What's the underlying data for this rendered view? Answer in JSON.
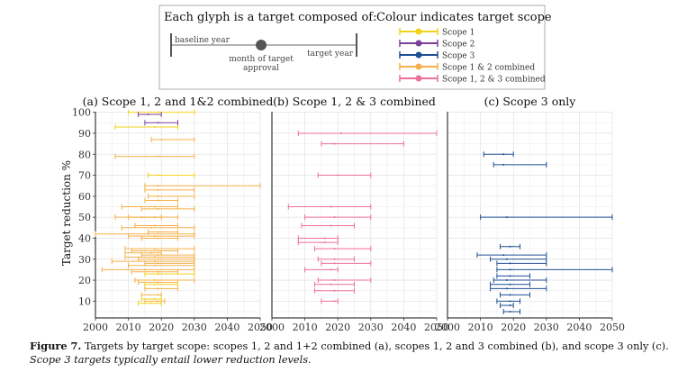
{
  "legend": {
    "glyph_heading": "Each glyph is a target composed of:",
    "glyph_baseline": "baseline year",
    "glyph_approval": "month of target approval",
    "glyph_target": "target year",
    "colour_heading": "Colour indicates target scope",
    "scopes": [
      {
        "label": "Scope 1",
        "color": "#f2d31b"
      },
      {
        "label": "Scope 2",
        "color": "#7b3f98"
      },
      {
        "label": "Scope 3",
        "color": "#1f4e94"
      },
      {
        "label": "Scope 1 & 2 combined",
        "color": "#f5b04a"
      },
      {
        "label": "Scope 1, 2 & 3 combined",
        "color": "#ec6f9d"
      }
    ],
    "glyph_color": "#b3b3b3",
    "glyph_dot_color": "#555555"
  },
  "caption": {
    "label": "Figure 7.",
    "text": " Targets by target scope: scopes 1, 2 and 1+2 combined (a), scopes 1, 2 and 3 combined (b), and scope 3 only (c).",
    "note": "Scope 3 targets typically entail lower reduction levels."
  },
  "chart_data": [
    {
      "type": "scatter",
      "title": "(a) Scope 1, 2 and 1&2 combined",
      "ylabel": "Target reduction %",
      "xlabel": "",
      "xlim": [
        2000,
        2050
      ],
      "ylim": [
        2,
        102
      ],
      "xticks": [
        2000,
        2010,
        2020,
        2030,
        2040,
        2050
      ],
      "yticks": [
        10,
        20,
        30,
        40,
        50,
        60,
        70,
        80,
        90,
        100
      ],
      "grid": true,
      "targets": [
        {
          "scope": "Scope 1",
          "baseline": 2010,
          "approval": 2019,
          "target": 2030,
          "reduction": 100
        },
        {
          "scope": "Scope 2",
          "baseline": 2013,
          "approval": 2016,
          "target": 2020,
          "reduction": 99
        },
        {
          "scope": "Scope 1",
          "baseline": 2006,
          "approval": 2018,
          "target": 2025,
          "reduction": 93
        },
        {
          "scope": "Scope 2",
          "baseline": 2015,
          "approval": 2019,
          "target": 2025,
          "reduction": 95
        },
        {
          "scope": "Scope 1 & 2 combined",
          "baseline": 2017,
          "approval": 2020,
          "target": 2030,
          "reduction": 87
        },
        {
          "scope": "Scope 1 & 2 combined",
          "baseline": 2006,
          "approval": 2019,
          "target": 2030,
          "reduction": 79
        },
        {
          "scope": "Scope 1",
          "baseline": 2016,
          "approval": 2019,
          "target": 2030,
          "reduction": 70
        },
        {
          "scope": "Scope 1 & 2 combined",
          "baseline": 2015,
          "approval": 2019,
          "target": 2050,
          "reduction": 65
        },
        {
          "scope": "Scope 1 & 2 combined",
          "baseline": 2015,
          "approval": 2019,
          "target": 2030,
          "reduction": 63
        },
        {
          "scope": "Scope 1 & 2 combined",
          "baseline": 2016,
          "approval": 2019,
          "target": 2030,
          "reduction": 60
        },
        {
          "scope": "Scope 1 & 2 combined",
          "baseline": 2015,
          "approval": 2019,
          "target": 2025,
          "reduction": 58
        },
        {
          "scope": "Scope 1 & 2 combined",
          "baseline": 2008,
          "approval": 2018,
          "target": 2025,
          "reduction": 55
        },
        {
          "scope": "Scope 1 & 2 combined",
          "baseline": 2014,
          "approval": 2019,
          "target": 2030,
          "reduction": 54
        },
        {
          "scope": "Scope 1 & 2 combined",
          "baseline": 2006,
          "approval": 2014,
          "target": 2020,
          "reduction": 50
        },
        {
          "scope": "Scope 1 & 2 combined",
          "baseline": 2010,
          "approval": 2018,
          "target": 2025,
          "reduction": 50
        },
        {
          "scope": "Scope 1 & 2 combined",
          "baseline": 2008,
          "approval": 2017,
          "target": 2030,
          "reduction": 45
        },
        {
          "scope": "Scope 1 & 2 combined",
          "baseline": 2012,
          "approval": 2018,
          "target": 2025,
          "reduction": 46
        },
        {
          "scope": "Scope 1 & 2 combined",
          "baseline": 2016,
          "approval": 2019,
          "target": 2025,
          "reduction": 43
        },
        {
          "scope": "Scope 1 & 2 combined",
          "baseline": 2010,
          "approval": 2018,
          "target": 2030,
          "reduction": 41
        },
        {
          "scope": "Scope 1 & 2 combined",
          "baseline": 2000,
          "approval": 2016,
          "target": 2030,
          "reduction": 42
        },
        {
          "scope": "Scope 1 & 2 combined",
          "baseline": 2014,
          "approval": 2019,
          "target": 2025,
          "reduction": 40
        },
        {
          "scope": "Scope 1 & 2 combined",
          "baseline": 2009,
          "approval": 2018,
          "target": 2030,
          "reduction": 35
        },
        {
          "scope": "Scope 1 & 2 combined",
          "baseline": 2011,
          "approval": 2019,
          "target": 2025,
          "reduction": 34
        },
        {
          "scope": "Scope 1 & 2 combined",
          "baseline": 2009,
          "approval": 2017,
          "target": 2020,
          "reduction": 33
        },
        {
          "scope": "Scope 1 & 2 combined",
          "baseline": 2014,
          "approval": 2019,
          "target": 2030,
          "reduction": 32
        },
        {
          "scope": "Scope 1 & 2 combined",
          "baseline": 2009,
          "approval": 2018,
          "target": 2030,
          "reduction": 31
        },
        {
          "scope": "Scope 1 & 2 combined",
          "baseline": 2013,
          "approval": 2019,
          "target": 2030,
          "reduction": 30
        },
        {
          "scope": "Scope 1 & 2 combined",
          "baseline": 2005,
          "approval": 2018,
          "target": 2030,
          "reduction": 29
        },
        {
          "scope": "Scope 1 & 2 combined",
          "baseline": 2015,
          "approval": 2019,
          "target": 2030,
          "reduction": 28
        },
        {
          "scope": "Scope 1 & 2 combined",
          "baseline": 2010,
          "approval": 2018,
          "target": 2030,
          "reduction": 27
        },
        {
          "scope": "Scope 1 & 2 combined",
          "baseline": 2002,
          "approval": 2015,
          "target": 2030,
          "reduction": 25
        },
        {
          "scope": "Scope 1 & 2 combined",
          "baseline": 2011,
          "approval": 2019,
          "target": 2025,
          "reduction": 24
        },
        {
          "scope": "Scope 1",
          "baseline": 2015,
          "approval": 2019,
          "target": 2030,
          "reduction": 23
        },
        {
          "scope": "Scope 1 & 2 combined",
          "baseline": 2012,
          "approval": 2018,
          "target": 2030,
          "reduction": 20
        },
        {
          "scope": "Scope 1 & 2 combined",
          "baseline": 2013,
          "approval": 2019,
          "target": 2025,
          "reduction": 19
        },
        {
          "scope": "Scope 1",
          "baseline": 2015,
          "approval": 2018,
          "target": 2025,
          "reduction": 18
        },
        {
          "scope": "Scope 1 & 2 combined",
          "baseline": 2015,
          "approval": 2019,
          "target": 2025,
          "reduction": 16
        },
        {
          "scope": "Scope 1 & 2 combined",
          "baseline": 2014,
          "approval": 2019,
          "target": 2020,
          "reduction": 13
        },
        {
          "scope": "Scope 1",
          "baseline": 2014,
          "approval": 2018,
          "target": 2020,
          "reduction": 11
        },
        {
          "scope": "Scope 1 & 2 combined",
          "baseline": 2015,
          "approval": 2019,
          "target": 2021,
          "reduction": 10
        },
        {
          "scope": "Scope 1",
          "baseline": 2013,
          "approval": 2017,
          "target": 2020,
          "reduction": 9
        }
      ]
    },
    {
      "type": "scatter",
      "title": "(b) Scope 1, 2 & 3 combined",
      "xlabel": "",
      "ylabel": "",
      "xlim": [
        2000,
        2050
      ],
      "ylim": [
        2,
        102
      ],
      "xticks": [
        2000,
        2010,
        2020,
        2030,
        2040,
        2050
      ],
      "yticks": [
        10,
        20,
        30,
        40,
        50,
        60,
        70,
        80,
        90,
        100
      ],
      "grid": true,
      "targets": [
        {
          "scope": "Scope 1, 2 & 3 combined",
          "baseline": 2008,
          "approval": 2021,
          "target": 2050,
          "reduction": 90
        },
        {
          "scope": "Scope 1, 2 & 3 combined",
          "baseline": 2015,
          "approval": 2019,
          "target": 2040,
          "reduction": 85
        },
        {
          "scope": "Scope 1, 2 & 3 combined",
          "baseline": 2014,
          "approval": 2020,
          "target": 2030,
          "reduction": 70
        },
        {
          "scope": "Scope 1, 2 & 3 combined",
          "baseline": 2005,
          "approval": 2018,
          "target": 2030,
          "reduction": 55
        },
        {
          "scope": "Scope 1, 2 & 3 combined",
          "baseline": 2010,
          "approval": 2019,
          "target": 2030,
          "reduction": 50
        },
        {
          "scope": "Scope 1, 2 & 3 combined",
          "baseline": 2009,
          "approval": 2018,
          "target": 2025,
          "reduction": 46
        },
        {
          "scope": "Scope 1, 2 & 3 combined",
          "baseline": 2008,
          "approval": 2016,
          "target": 2020,
          "reduction": 40
        },
        {
          "scope": "Scope 1, 2 & 3 combined",
          "baseline": 2008,
          "approval": 2016,
          "target": 2020,
          "reduction": 38
        },
        {
          "scope": "Scope 1, 2 & 3 combined",
          "baseline": 2013,
          "approval": 2019,
          "target": 2030,
          "reduction": 35
        },
        {
          "scope": "Scope 1, 2 & 3 combined",
          "baseline": 2014,
          "approval": 2019,
          "target": 2025,
          "reduction": 30
        },
        {
          "scope": "Scope 1, 2 & 3 combined",
          "baseline": 2015,
          "approval": 2019,
          "target": 2030,
          "reduction": 28
        },
        {
          "scope": "Scope 1, 2 & 3 combined",
          "baseline": 2010,
          "approval": 2018,
          "target": 2020,
          "reduction": 25
        },
        {
          "scope": "Scope 1, 2 & 3 combined",
          "baseline": 2014,
          "approval": 2019,
          "target": 2030,
          "reduction": 20
        },
        {
          "scope": "Scope 1, 2 & 3 combined",
          "baseline": 2013,
          "approval": 2018,
          "target": 2025,
          "reduction": 18
        },
        {
          "scope": "Scope 1, 2 & 3 combined",
          "baseline": 2013,
          "approval": 2019,
          "target": 2025,
          "reduction": 15
        },
        {
          "scope": "Scope 1, 2 & 3 combined",
          "baseline": 2015,
          "approval": 2019,
          "target": 2020,
          "reduction": 10
        }
      ]
    },
    {
      "type": "scatter",
      "title": "(c) Scope 3 only",
      "xlabel": "",
      "ylabel": "",
      "xlim": [
        2000,
        2050
      ],
      "ylim": [
        2,
        102
      ],
      "xticks": [
        2000,
        2010,
        2020,
        2030,
        2040,
        2050
      ],
      "yticks": [
        10,
        20,
        30,
        40,
        50,
        60,
        70,
        80,
        90,
        100
      ],
      "grid": true,
      "targets": [
        {
          "scope": "Scope 3",
          "baseline": 2011,
          "approval": 2017,
          "target": 2020,
          "reduction": 80
        },
        {
          "scope": "Scope 3",
          "baseline": 2014,
          "approval": 2017,
          "target": 2030,
          "reduction": 75
        },
        {
          "scope": "Scope 3",
          "baseline": 2010,
          "approval": 2018,
          "target": 2050,
          "reduction": 50
        },
        {
          "scope": "Scope 3",
          "baseline": 2016,
          "approval": 2019,
          "target": 2022,
          "reduction": 36
        },
        {
          "scope": "Scope 3",
          "baseline": 2009,
          "approval": 2017,
          "target": 2030,
          "reduction": 32
        },
        {
          "scope": "Scope 3",
          "baseline": 2013,
          "approval": 2018,
          "target": 2030,
          "reduction": 30
        },
        {
          "scope": "Scope 3",
          "baseline": 2015,
          "approval": 2019,
          "target": 2030,
          "reduction": 28
        },
        {
          "scope": "Scope 3",
          "baseline": 2015,
          "approval": 2019,
          "target": 2050,
          "reduction": 25
        },
        {
          "scope": "Scope 3",
          "baseline": 2015,
          "approval": 2019,
          "target": 2025,
          "reduction": 22
        },
        {
          "scope": "Scope 3",
          "baseline": 2014,
          "approval": 2018,
          "target": 2030,
          "reduction": 20
        },
        {
          "scope": "Scope 3",
          "baseline": 2013,
          "approval": 2019,
          "target": 2025,
          "reduction": 18
        },
        {
          "scope": "Scope 3",
          "baseline": 2013,
          "approval": 2018,
          "target": 2030,
          "reduction": 16
        },
        {
          "scope": "Scope 3",
          "baseline": 2016,
          "approval": 2019,
          "target": 2025,
          "reduction": 13
        },
        {
          "scope": "Scope 3",
          "baseline": 2015,
          "approval": 2019,
          "target": 2022,
          "reduction": 10
        },
        {
          "scope": "Scope 3",
          "baseline": 2016,
          "approval": 2019,
          "target": 2020,
          "reduction": 8
        },
        {
          "scope": "Scope 3",
          "baseline": 2017,
          "approval": 2019,
          "target": 2022,
          "reduction": 5
        }
      ]
    }
  ]
}
